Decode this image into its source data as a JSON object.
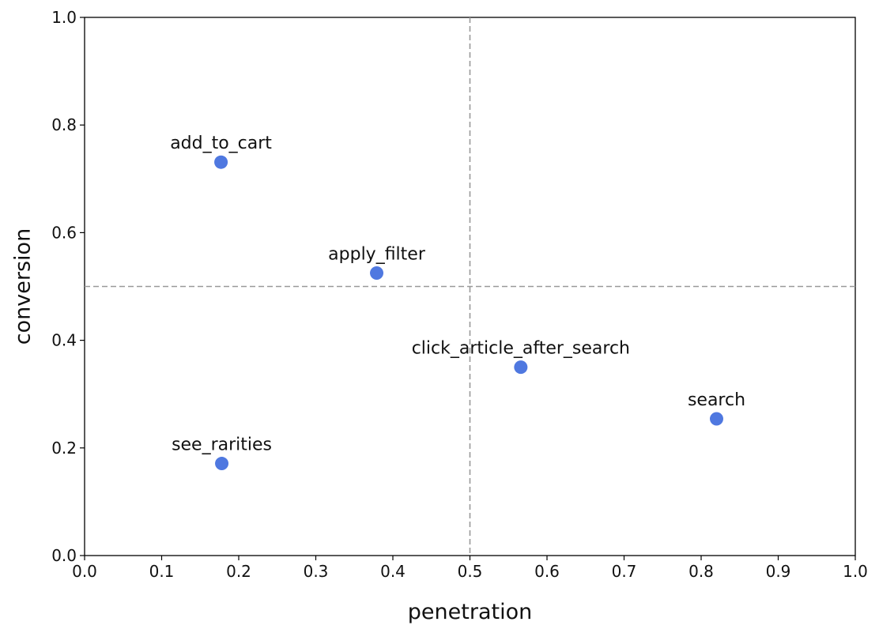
{
  "chart_data": {
    "type": "scatter",
    "title": "",
    "xlabel": "penetration",
    "ylabel": "conversion",
    "xlim": [
      0.0,
      1.0
    ],
    "ylim": [
      0.0,
      1.0
    ],
    "x_ticks": [
      "0.0",
      "0.1",
      "0.2",
      "0.3",
      "0.4",
      "0.5",
      "0.6",
      "0.7",
      "0.8",
      "0.9",
      "1.0"
    ],
    "y_ticks": [
      "0.0",
      "0.2",
      "0.4",
      "0.6",
      "0.8",
      "1.0"
    ],
    "grid": false,
    "reference_lines": {
      "x": 0.5,
      "y": 0.5,
      "style": "dashed",
      "color": "#999999"
    },
    "marker_color": "#4f78e0",
    "points": [
      {
        "label": "add_to_cart",
        "x": 0.177,
        "y": 0.731
      },
      {
        "label": "apply_filter",
        "x": 0.379,
        "y": 0.525
      },
      {
        "label": "click_article_after_search",
        "x": 0.566,
        "y": 0.35
      },
      {
        "label": "search",
        "x": 0.82,
        "y": 0.254
      },
      {
        "label": "see_rarities",
        "x": 0.178,
        "y": 0.171
      }
    ]
  }
}
